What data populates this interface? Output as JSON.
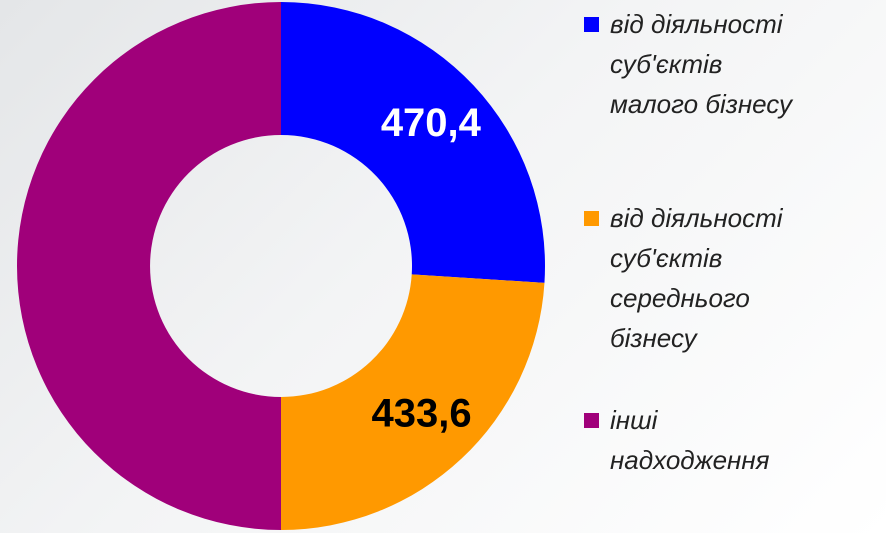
{
  "chart_data": {
    "type": "donut",
    "categories": [
      "від діяльності\nсуб'єктів\nмалого бізнесу",
      "від діяльності\nсуб'єктів\nсереднього\nбізнесу",
      "інші\nнадходження"
    ],
    "values": [
      470.4,
      433.6,
      904
    ],
    "value_labels": [
      "470,4",
      "433,6",
      null
    ],
    "colors": [
      "#0000ff",
      "#ff9900",
      "#a0007a"
    ],
    "label_colors": [
      "#ffffff",
      "#000000",
      null
    ],
    "legend": "right"
  }
}
